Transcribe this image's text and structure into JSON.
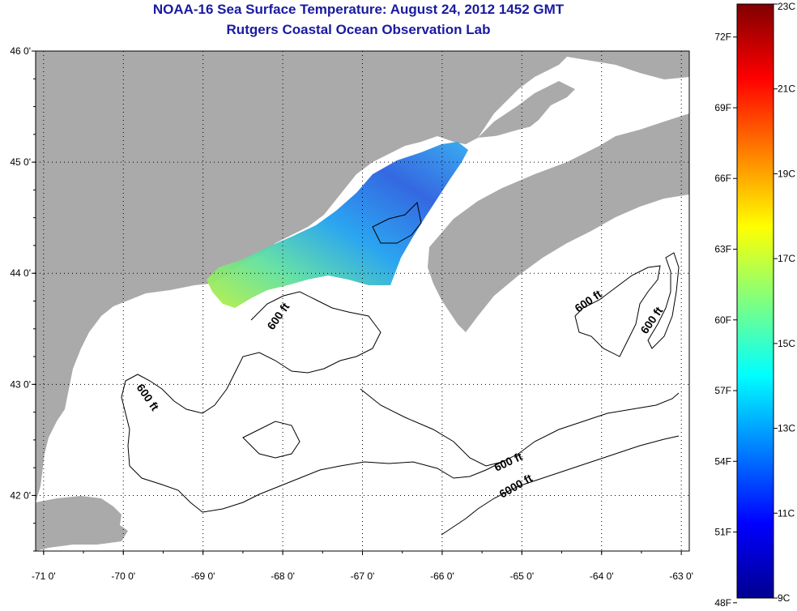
{
  "title": {
    "line1": "NOAA-16 Sea Surface Temperature:  August 24, 2012 1452 GMT",
    "line2": "Rutgers Coastal Ocean Observation Lab"
  },
  "map": {
    "lon_range": [
      -71.1,
      -62.9
    ],
    "lat_range": [
      41.5,
      46.0
    ],
    "lon_ticks": [
      {
        "value": -71,
        "label": "-71 0'"
      },
      {
        "value": -70,
        "label": "-70 0'"
      },
      {
        "value": -69,
        "label": "-69 0'"
      },
      {
        "value": -68,
        "label": "-68 0'"
      },
      {
        "value": -67,
        "label": "-67 0'"
      },
      {
        "value": -66,
        "label": "-66 0'"
      },
      {
        "value": -65,
        "label": "-65 0'"
      },
      {
        "value": -64,
        "label": "-64 0'"
      },
      {
        "value": -63,
        "label": "-63 0'"
      }
    ],
    "lat_ticks": [
      {
        "value": 46,
        "label": "46 0'"
      },
      {
        "value": 45,
        "label": "45 0'"
      },
      {
        "value": 44,
        "label": "44 0'"
      },
      {
        "value": 43,
        "label": "43 0'"
      },
      {
        "value": 42,
        "label": "42 0'"
      }
    ],
    "grid": "dotted",
    "land_color": "#aaaaaa",
    "ocean_color": "#ffffff",
    "contour_labels": [
      "600 ft",
      "600 ft",
      "600 ft",
      "600 ft",
      "600 ft",
      "6000 ft"
    ]
  },
  "colorbar": {
    "min_c": 9,
    "max_c": 23,
    "celsius_labels": [
      {
        "value": 23,
        "label": "23C"
      },
      {
        "value": 21,
        "label": "21C"
      },
      {
        "value": 19,
        "label": "19C"
      },
      {
        "value": 17,
        "label": "17C"
      },
      {
        "value": 15,
        "label": "15C"
      },
      {
        "value": 13,
        "label": "13C"
      },
      {
        "value": 11,
        "label": "11C"
      },
      {
        "value": 9,
        "label": "9C"
      }
    ],
    "fahrenheit_labels": [
      {
        "value": 72,
        "label": "72F"
      },
      {
        "value": 69,
        "label": "69F"
      },
      {
        "value": 66,
        "label": "66F"
      },
      {
        "value": 63,
        "label": "63F"
      },
      {
        "value": 60,
        "label": "60F"
      },
      {
        "value": 57,
        "label": "57F"
      },
      {
        "value": 54,
        "label": "54F"
      },
      {
        "value": 51,
        "label": "51F"
      },
      {
        "value": 48,
        "label": "48F"
      }
    ]
  }
}
